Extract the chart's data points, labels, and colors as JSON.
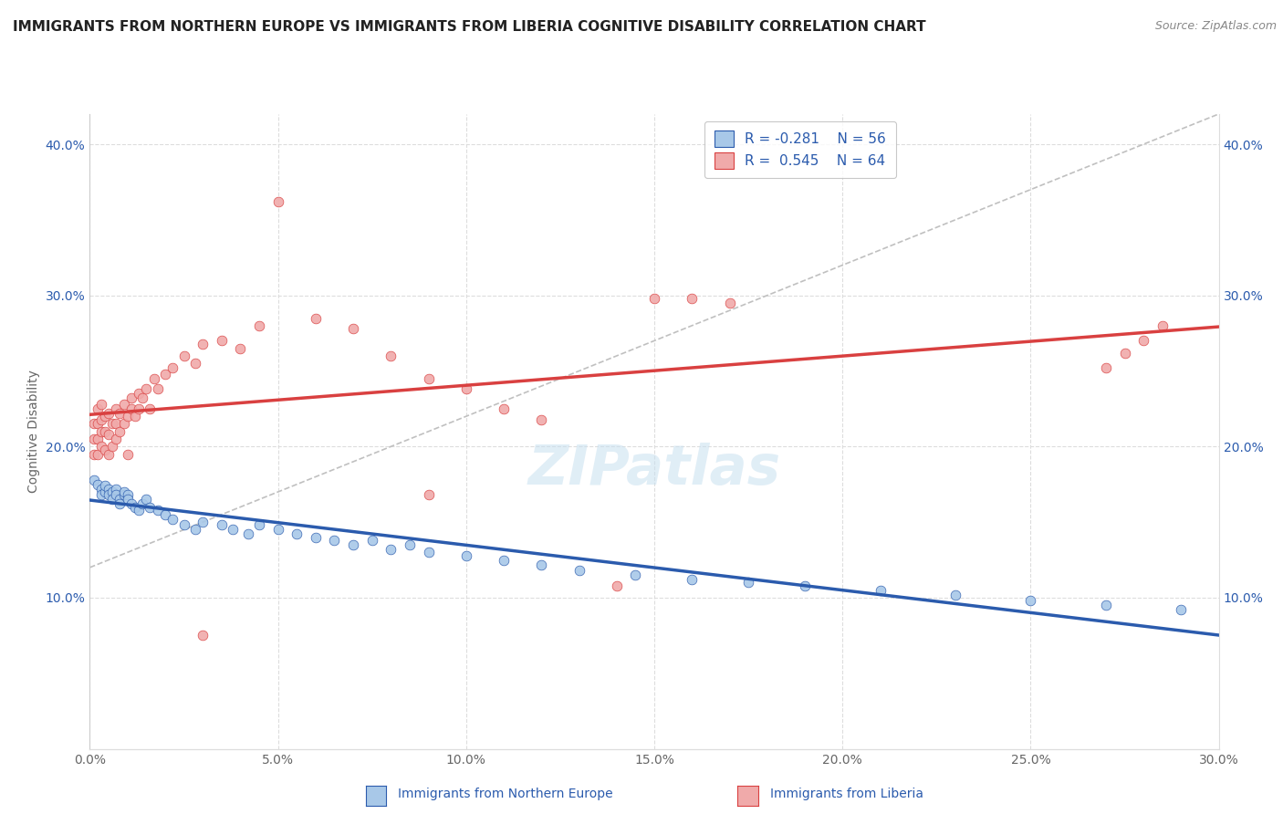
{
  "title": "IMMIGRANTS FROM NORTHERN EUROPE VS IMMIGRANTS FROM LIBERIA COGNITIVE DISABILITY CORRELATION CHART",
  "source": "Source: ZipAtlas.com",
  "xlabel_blue": "Immigrants from Northern Europe",
  "xlabel_pink": "Immigrants from Liberia",
  "ylabel": "Cognitive Disability",
  "xlim": [
    0.0,
    0.3
  ],
  "ylim": [
    0.0,
    0.42
  ],
  "xticks": [
    0.0,
    0.05,
    0.1,
    0.15,
    0.2,
    0.25,
    0.3
  ],
  "yticks": [
    0.1,
    0.2,
    0.3,
    0.4
  ],
  "ytick_labels": [
    "10.0%",
    "20.0%",
    "30.0%",
    "40.0%"
  ],
  "xtick_labels": [
    "0.0%",
    "5.0%",
    "10.0%",
    "15.0%",
    "20.0%",
    "25.0%",
    "30.0%"
  ],
  "R_blue": -0.281,
  "N_blue": 56,
  "R_pink": 0.545,
  "N_pink": 64,
  "color_blue": "#A8C8E8",
  "color_blue_line": "#2B5BAD",
  "color_pink": "#F0AAAA",
  "color_pink_line": "#D94040",
  "color_gray_dash": "#C0C0C0",
  "blue_x": [
    0.001,
    0.002,
    0.003,
    0.003,
    0.004,
    0.004,
    0.005,
    0.005,
    0.006,
    0.006,
    0.007,
    0.007,
    0.008,
    0.008,
    0.009,
    0.009,
    0.01,
    0.01,
    0.011,
    0.012,
    0.013,
    0.014,
    0.015,
    0.016,
    0.018,
    0.02,
    0.022,
    0.025,
    0.028,
    0.03,
    0.035,
    0.038,
    0.042,
    0.045,
    0.05,
    0.055,
    0.06,
    0.065,
    0.07,
    0.075,
    0.08,
    0.085,
    0.09,
    0.1,
    0.11,
    0.12,
    0.13,
    0.145,
    0.16,
    0.175,
    0.19,
    0.21,
    0.23,
    0.25,
    0.27,
    0.29
  ],
  "blue_y": [
    0.178,
    0.175,
    0.172,
    0.168,
    0.17,
    0.174,
    0.172,
    0.168,
    0.17,
    0.165,
    0.172,
    0.168,
    0.165,
    0.162,
    0.168,
    0.17,
    0.168,
    0.165,
    0.162,
    0.16,
    0.158,
    0.162,
    0.165,
    0.16,
    0.158,
    0.155,
    0.152,
    0.148,
    0.145,
    0.15,
    0.148,
    0.145,
    0.142,
    0.148,
    0.145,
    0.142,
    0.14,
    0.138,
    0.135,
    0.138,
    0.132,
    0.135,
    0.13,
    0.128,
    0.125,
    0.122,
    0.118,
    0.115,
    0.112,
    0.11,
    0.108,
    0.105,
    0.102,
    0.098,
    0.095,
    0.092
  ],
  "pink_x": [
    0.001,
    0.001,
    0.001,
    0.002,
    0.002,
    0.002,
    0.002,
    0.003,
    0.003,
    0.003,
    0.003,
    0.004,
    0.004,
    0.004,
    0.005,
    0.005,
    0.005,
    0.006,
    0.006,
    0.007,
    0.007,
    0.007,
    0.008,
    0.008,
    0.009,
    0.009,
    0.01,
    0.01,
    0.011,
    0.011,
    0.012,
    0.013,
    0.013,
    0.014,
    0.015,
    0.016,
    0.017,
    0.018,
    0.02,
    0.022,
    0.025,
    0.028,
    0.03,
    0.035,
    0.04,
    0.045,
    0.05,
    0.06,
    0.07,
    0.08,
    0.09,
    0.1,
    0.11,
    0.12,
    0.14,
    0.15,
    0.16,
    0.17,
    0.27,
    0.275,
    0.28,
    0.285,
    0.03,
    0.09
  ],
  "pink_y": [
    0.195,
    0.205,
    0.215,
    0.195,
    0.205,
    0.215,
    0.225,
    0.2,
    0.21,
    0.218,
    0.228,
    0.198,
    0.21,
    0.22,
    0.195,
    0.208,
    0.222,
    0.2,
    0.215,
    0.205,
    0.215,
    0.225,
    0.21,
    0.222,
    0.215,
    0.228,
    0.195,
    0.22,
    0.225,
    0.232,
    0.22,
    0.225,
    0.235,
    0.232,
    0.238,
    0.225,
    0.245,
    0.238,
    0.248,
    0.252,
    0.26,
    0.255,
    0.268,
    0.27,
    0.265,
    0.28,
    0.362,
    0.285,
    0.278,
    0.26,
    0.245,
    0.238,
    0.225,
    0.218,
    0.108,
    0.298,
    0.298,
    0.295,
    0.252,
    0.262,
    0.27,
    0.28,
    0.075,
    0.168
  ],
  "background_color": "#FFFFFF",
  "grid_color": "#DDDDDD",
  "title_fontsize": 11,
  "axis_label_fontsize": 10,
  "tick_fontsize": 10,
  "legend_fontsize": 11
}
